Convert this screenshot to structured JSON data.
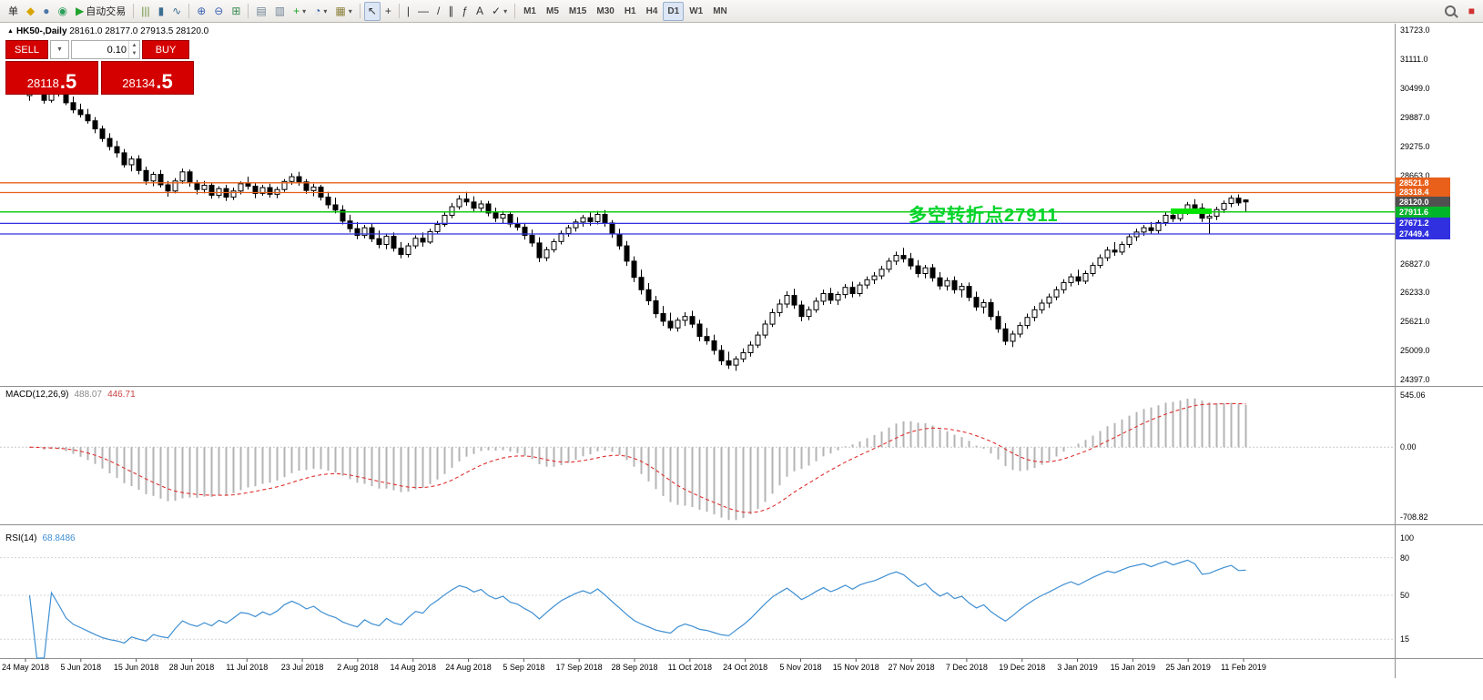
{
  "toolbar": {
    "timeframes": [
      "M1",
      "M5",
      "M15",
      "M30",
      "H1",
      "H4",
      "D1",
      "W1",
      "MN"
    ],
    "active_timeframe": "D1",
    "items": [
      {
        "name": "new-order-button",
        "label": "单"
      },
      {
        "name": "profiles-icon",
        "glyph": "◆",
        "color": "#d8a400"
      },
      {
        "name": "charts-icon",
        "glyph": "●",
        "color": "#4a76a8"
      },
      {
        "name": "market-watch-icon",
        "glyph": "◉",
        "color": "#2e9e5b"
      },
      {
        "name": "autotrading-button",
        "glyph": "▶",
        "color": "#1fa32c",
        "label": "自动交易"
      },
      {
        "sep": true
      },
      {
        "name": "bar-chart-icon",
        "glyph": "|||",
        "color": "#6a8f3c"
      },
      {
        "name": "candlestick-chart-icon",
        "glyph": "▮",
        "color": "#3c6e91"
      },
      {
        "name": "line-chart-icon",
        "glyph": "∿",
        "color": "#3c6e91"
      },
      {
        "sep": true
      },
      {
        "name": "zoom-in-icon",
        "glyph": "⊕",
        "color": "#3a62b0"
      },
      {
        "name": "zoom-out-icon",
        "glyph": "⊖",
        "color": "#3a62b0"
      },
      {
        "name": "tile-windows-icon",
        "glyph": "⊞",
        "color": "#3a8a52"
      },
      {
        "sep": true
      },
      {
        "name": "arrange-windows-icon",
        "glyph": "▤",
        "color": "#6b7f94"
      },
      {
        "name": "cascade-windows-icon",
        "glyph": "▥",
        "color": "#6b7f94"
      },
      {
        "name": "indicators-icon",
        "glyph": "+",
        "color": "#1fa32c",
        "dropdown": true
      },
      {
        "name": "periods-icon",
        "glyph": "◔",
        "color": "#3a62b0",
        "dropdown": true
      },
      {
        "name": "templates-icon",
        "glyph": "▦",
        "color": "#8a7f3c",
        "dropdown": true
      },
      {
        "sep": true
      },
      {
        "name": "cursor-icon",
        "glyph": "↖",
        "color": "#333333",
        "pressed": true
      },
      {
        "name": "crosshair-icon",
        "glyph": "+",
        "color": "#333333"
      },
      {
        "sep": true
      },
      {
        "name": "vertical-line-icon",
        "glyph": "|",
        "color": "#333333"
      },
      {
        "name": "horizontal-line-icon",
        "glyph": "—",
        "color": "#333333"
      },
      {
        "name": "trendline-icon",
        "glyph": "/",
        "color": "#333333"
      },
      {
        "name": "channel-icon",
        "glyph": "∥",
        "color": "#333333"
      },
      {
        "name": "fibonacci-icon",
        "glyph": "ƒ",
        "color": "#333333"
      },
      {
        "name": "text-icon",
        "glyph": "A",
        "color": "#333333"
      },
      {
        "name": "arrows-icon",
        "glyph": "✓",
        "color": "#333333",
        "dropdown": true
      },
      {
        "sep": true
      },
      {
        "timeframes": true
      },
      {
        "spring": true
      },
      {
        "name": "search-icon",
        "shape": "magnifier"
      },
      {
        "name": "community-icon",
        "glyph": "■",
        "color": "#d03030"
      }
    ]
  },
  "chart_header": {
    "collapse_icon": "▲",
    "symbol": "HK50-,Daily",
    "ohlc_text": "28161.0 28177.0 27913.5 28120.0"
  },
  "trade_panel": {
    "sell_label": "SELL",
    "buy_label": "BUY",
    "volume": "0.10",
    "sell_price_big": "28118",
    "sell_price_pips": ".5",
    "buy_price_big": "28134",
    "buy_price_pips": ".5"
  },
  "annotation": {
    "text": "多空转折点27911",
    "color": "#00d42a"
  },
  "hlines": [
    {
      "price": 28521.8,
      "color": "#e8601a"
    },
    {
      "price": 28318.4,
      "color": "#e8601a"
    },
    {
      "price": 27911.6,
      "color": "#00c800"
    },
    {
      "price": 27671.2,
      "color": "#3030e0"
    },
    {
      "price": 27449.4,
      "color": "#3030e0"
    }
  ],
  "highlight_bar": {
    "price": 27925,
    "from_index": 157,
    "to_index": 162,
    "color": "#00e400"
  },
  "price_axis": {
    "labels": [
      [
        "31723.0",
        31723
      ],
      [
        "31111.0",
        31111
      ],
      [
        "30499.0",
        30499
      ],
      [
        "29887.0",
        29887
      ],
      [
        "29275.0",
        29275
      ],
      [
        "28663.0",
        28663
      ],
      [
        "26827.0",
        26827
      ],
      [
        "26233.0",
        26233
      ],
      [
        "25621.0",
        25621
      ],
      [
        "25009.0",
        25009
      ],
      [
        "24397.0",
        24397
      ]
    ],
    "tags": [
      {
        "text": "28521.8",
        "price": 28521.8,
        "bg": "#e8601a"
      },
      {
        "text": "28318.4",
        "price": 28318.4,
        "bg": "#e8601a"
      },
      {
        "text": "28120.0",
        "price": 28120.0,
        "bg": "#505050"
      },
      {
        "text": "27911.6",
        "price": 27911.6,
        "bg": "#00b42a"
      },
      {
        "text": "27671.2",
        "price": 27671.2,
        "bg": "#3030e0"
      },
      {
        "text": "27449.4",
        "price": 27449.4,
        "bg": "#3030e0"
      }
    ]
  },
  "macd_panel": {
    "name": "MACD(12,26,9)",
    "value_main": "488.07",
    "value_signal": "446.71",
    "max": 545.06,
    "min": -708.82,
    "max_label": "545.06",
    "zero_label": "0.00",
    "min_label": "-708.82"
  },
  "rsi_panel": {
    "name": "RSI(14)",
    "value": "68.8486",
    "levels": [
      80,
      50,
      15
    ],
    "axis_labels": [
      [
        "100",
        100
      ],
      [
        "80",
        80
      ],
      [
        "50",
        50
      ],
      [
        "15",
        15
      ]
    ]
  },
  "time_axis": {
    "dates": [
      "24 May 2018",
      "5 Jun 2018",
      "15 Jun 2018",
      "28 Jun 2018",
      "11 Jul 2018",
      "23 Jul 2018",
      "2 Aug 2018",
      "14 Aug 2018",
      "24 Aug 2018",
      "5 Sep 2018",
      "17 Sep 2018",
      "28 Sep 2018",
      "11 Oct 2018",
      "24 Oct 2018",
      "5 Nov 2018",
      "15 Nov 2018",
      "27 Nov 2018",
      "7 Dec 2018",
      "19 Dec 2018",
      "3 Jan 2019",
      "15 Jan 2019",
      "25 Jan 2019",
      "11 Feb 2019"
    ]
  },
  "chart_data": {
    "type": "candlestick",
    "symbol": "HK50",
    "timeframe": "Daily",
    "last_ohlc": {
      "open": 28161.0,
      "high": 28177.0,
      "low": 27913.5,
      "close": 28120.0
    },
    "ylim": [
      24397,
      31723
    ],
    "indicators": [
      {
        "type": "MACD",
        "params": [
          12,
          26,
          9
        ],
        "current": [
          488.07,
          446.71
        ],
        "range": [
          -708.82,
          545.06
        ]
      },
      {
        "type": "RSI",
        "params": [
          14
        ],
        "current": 68.8486,
        "range": [
          0,
          100
        ]
      }
    ],
    "candles": [
      [
        30350,
        30560,
        30240,
        30480
      ],
      [
        30480,
        30620,
        30380,
        30420
      ],
      [
        30420,
        30520,
        30180,
        30250
      ],
      [
        30250,
        30540,
        30200,
        30500
      ],
      [
        30500,
        30580,
        30330,
        30390
      ],
      [
        30390,
        30450,
        30150,
        30200
      ],
      [
        30200,
        30330,
        29980,
        30050
      ],
      [
        30050,
        30180,
        29890,
        29950
      ],
      [
        29950,
        30070,
        29760,
        29820
      ],
      [
        29820,
        29900,
        29560,
        29650
      ],
      [
        29650,
        29720,
        29380,
        29450
      ],
      [
        29450,
        29560,
        29200,
        29280
      ],
      [
        29280,
        29400,
        29050,
        29150
      ],
      [
        29150,
        29230,
        28840,
        28900
      ],
      [
        28900,
        29080,
        28760,
        29020
      ],
      [
        29020,
        29100,
        28700,
        28780
      ],
      [
        28780,
        28860,
        28480,
        28560
      ],
      [
        28560,
        28750,
        28450,
        28700
      ],
      [
        28700,
        28790,
        28420,
        28480
      ],
      [
        28480,
        28560,
        28230,
        28350
      ],
      [
        28350,
        28620,
        28300,
        28560
      ],
      [
        28560,
        28820,
        28500,
        28750
      ],
      [
        28750,
        28800,
        28440,
        28520
      ],
      [
        28520,
        28580,
        28280,
        28380
      ],
      [
        28380,
        28560,
        28300,
        28470
      ],
      [
        28470,
        28520,
        28190,
        28260
      ],
      [
        28260,
        28450,
        28200,
        28400
      ],
      [
        28400,
        28480,
        28140,
        28220
      ],
      [
        28220,
        28420,
        28160,
        28350
      ],
      [
        28350,
        28550,
        28280,
        28500
      ],
      [
        28500,
        28650,
        28380,
        28450
      ],
      [
        28450,
        28520,
        28200,
        28300
      ],
      [
        28300,
        28480,
        28250,
        28420
      ],
      [
        28420,
        28500,
        28210,
        28280
      ],
      [
        28280,
        28440,
        28200,
        28380
      ],
      [
        28380,
        28600,
        28330,
        28550
      ],
      [
        28550,
        28720,
        28480,
        28650
      ],
      [
        28650,
        28750,
        28460,
        28540
      ],
      [
        28540,
        28600,
        28290,
        28360
      ],
      [
        28360,
        28500,
        28240,
        28430
      ],
      [
        28430,
        28480,
        28150,
        28220
      ],
      [
        28220,
        28330,
        27980,
        28060
      ],
      [
        28060,
        28210,
        27880,
        27950
      ],
      [
        27950,
        28050,
        27650,
        27720
      ],
      [
        27720,
        27850,
        27480,
        27560
      ],
      [
        27560,
        27700,
        27340,
        27420
      ],
      [
        27420,
        27640,
        27360,
        27580
      ],
      [
        27580,
        27660,
        27280,
        27350
      ],
      [
        27350,
        27520,
        27150,
        27230
      ],
      [
        27230,
        27450,
        27130,
        27400
      ],
      [
        27400,
        27480,
        27080,
        27150
      ],
      [
        27150,
        27280,
        26940,
        27020
      ],
      [
        27020,
        27260,
        26960,
        27200
      ],
      [
        27200,
        27420,
        27140,
        27360
      ],
      [
        27360,
        27480,
        27180,
        27280
      ],
      [
        27280,
        27560,
        27240,
        27500
      ],
      [
        27500,
        27720,
        27440,
        27650
      ],
      [
        27650,
        27900,
        27600,
        27840
      ],
      [
        27840,
        28100,
        27780,
        28020
      ],
      [
        28020,
        28260,
        27960,
        28180
      ],
      [
        28180,
        28330,
        28040,
        28120
      ],
      [
        28120,
        28240,
        27920,
        27990
      ],
      [
        27990,
        28150,
        27900,
        28080
      ],
      [
        28080,
        28140,
        27820,
        27890
      ],
      [
        27890,
        28000,
        27700,
        27780
      ],
      [
        27780,
        27930,
        27660,
        27860
      ],
      [
        27860,
        27920,
        27590,
        27660
      ],
      [
        27660,
        27800,
        27520,
        27590
      ],
      [
        27590,
        27680,
        27330,
        27420
      ],
      [
        27420,
        27540,
        27180,
        27260
      ],
      [
        27260,
        27380,
        26860,
        26950
      ],
      [
        26950,
        27180,
        26880,
        27120
      ],
      [
        27120,
        27350,
        27060,
        27290
      ],
      [
        27290,
        27520,
        27230,
        27460
      ],
      [
        27460,
        27640,
        27390,
        27580
      ],
      [
        27580,
        27760,
        27500,
        27700
      ],
      [
        27700,
        27850,
        27600,
        27790
      ],
      [
        27790,
        27900,
        27620,
        27710
      ],
      [
        27710,
        27930,
        27650,
        27860
      ],
      [
        27860,
        27950,
        27600,
        27680
      ],
      [
        27680,
        27740,
        27370,
        27450
      ],
      [
        27450,
        27560,
        27120,
        27200
      ],
      [
        27200,
        27300,
        26780,
        26880
      ],
      [
        26880,
        26980,
        26440,
        26540
      ],
      [
        26540,
        26700,
        26180,
        26280
      ],
      [
        26280,
        26420,
        25960,
        26050
      ],
      [
        26050,
        26150,
        25690,
        25780
      ],
      [
        25780,
        25940,
        25520,
        25620
      ],
      [
        25620,
        25800,
        25420,
        25480
      ],
      [
        25480,
        25700,
        25400,
        25640
      ],
      [
        25640,
        25810,
        25520,
        25720
      ],
      [
        25720,
        25840,
        25480,
        25560
      ],
      [
        25560,
        25650,
        25200,
        25300
      ],
      [
        25300,
        25480,
        25130,
        25210
      ],
      [
        25210,
        25340,
        24920,
        25010
      ],
      [
        25010,
        25120,
        24700,
        24790
      ],
      [
        24790,
        24980,
        24620,
        24700
      ],
      [
        24700,
        24890,
        24580,
        24830
      ],
      [
        24830,
        25050,
        24760,
        24960
      ],
      [
        24960,
        25200,
        24880,
        25120
      ],
      [
        25120,
        25400,
        25060,
        25330
      ],
      [
        25330,
        25640,
        25260,
        25560
      ],
      [
        25560,
        25880,
        25500,
        25800
      ],
      [
        25800,
        26080,
        25720,
        25980
      ],
      [
        25980,
        26250,
        25900,
        26160
      ],
      [
        26160,
        26300,
        25880,
        25960
      ],
      [
        25960,
        26050,
        25620,
        25720
      ],
      [
        25720,
        25930,
        25640,
        25860
      ],
      [
        25860,
        26120,
        25800,
        26040
      ],
      [
        26040,
        26280,
        25960,
        26200
      ],
      [
        26200,
        26320,
        25980,
        26060
      ],
      [
        26060,
        26240,
        25960,
        26180
      ],
      [
        26180,
        26400,
        26100,
        26330
      ],
      [
        26330,
        26450,
        26120,
        26200
      ],
      [
        26200,
        26440,
        26140,
        26380
      ],
      [
        26380,
        26560,
        26300,
        26490
      ],
      [
        26490,
        26650,
        26400,
        26570
      ],
      [
        26570,
        26780,
        26500,
        26710
      ],
      [
        26710,
        26950,
        26640,
        26880
      ],
      [
        26880,
        27080,
        26800,
        27000
      ],
      [
        27000,
        27160,
        26850,
        26930
      ],
      [
        26930,
        27050,
        26700,
        26780
      ],
      [
        26780,
        26900,
        26540,
        26620
      ],
      [
        26620,
        26800,
        26520,
        26740
      ],
      [
        26740,
        26820,
        26450,
        26530
      ],
      [
        26530,
        26650,
        26280,
        26360
      ],
      [
        26360,
        26540,
        26260,
        26470
      ],
      [
        26470,
        26560,
        26200,
        26280
      ],
      [
        26280,
        26420,
        26120,
        26350
      ],
      [
        26350,
        26430,
        26040,
        26120
      ],
      [
        26120,
        26240,
        25840,
        25920
      ],
      [
        25920,
        26080,
        25780,
        26010
      ],
      [
        26010,
        26090,
        25640,
        25720
      ],
      [
        25720,
        25840,
        25380,
        25460
      ],
      [
        25460,
        25580,
        25120,
        25200
      ],
      [
        25200,
        25420,
        25080,
        25350
      ],
      [
        25350,
        25600,
        25280,
        25530
      ],
      [
        25530,
        25780,
        25460,
        25700
      ],
      [
        25700,
        25940,
        25620,
        25860
      ],
      [
        25860,
        26080,
        25780,
        26000
      ],
      [
        26000,
        26200,
        25900,
        26130
      ],
      [
        26130,
        26350,
        26060,
        26280
      ],
      [
        26280,
        26500,
        26200,
        26430
      ],
      [
        26430,
        26620,
        26350,
        26550
      ],
      [
        26550,
        26700,
        26380,
        26460
      ],
      [
        26460,
        26680,
        26400,
        26620
      ],
      [
        26620,
        26850,
        26560,
        26790
      ],
      [
        26790,
        27020,
        26730,
        26950
      ],
      [
        26950,
        27180,
        26880,
        27110
      ],
      [
        27110,
        27280,
        26990,
        27070
      ],
      [
        27070,
        27290,
        27010,
        27230
      ],
      [
        27230,
        27450,
        27160,
        27390
      ],
      [
        27390,
        27560,
        27300,
        27490
      ],
      [
        27490,
        27640,
        27410,
        27580
      ],
      [
        27580,
        27700,
        27440,
        27520
      ],
      [
        27520,
        27740,
        27460,
        27690
      ],
      [
        27690,
        27900,
        27620,
        27840
      ],
      [
        27840,
        27980,
        27700,
        27770
      ],
      [
        27770,
        27960,
        27710,
        27910
      ],
      [
        27910,
        28120,
        27850,
        28060
      ],
      [
        28060,
        28180,
        27920,
        27990
      ],
      [
        27990,
        28090,
        27700,
        27780
      ],
      [
        27780,
        27860,
        27450,
        27820
      ],
      [
        27820,
        28020,
        27740,
        27960
      ],
      [
        27960,
        28150,
        27890,
        28090
      ],
      [
        28090,
        28260,
        28010,
        28200
      ],
      [
        28200,
        28280,
        28040,
        28100
      ],
      [
        28161,
        28177,
        27913.5,
        28120
      ]
    ]
  }
}
